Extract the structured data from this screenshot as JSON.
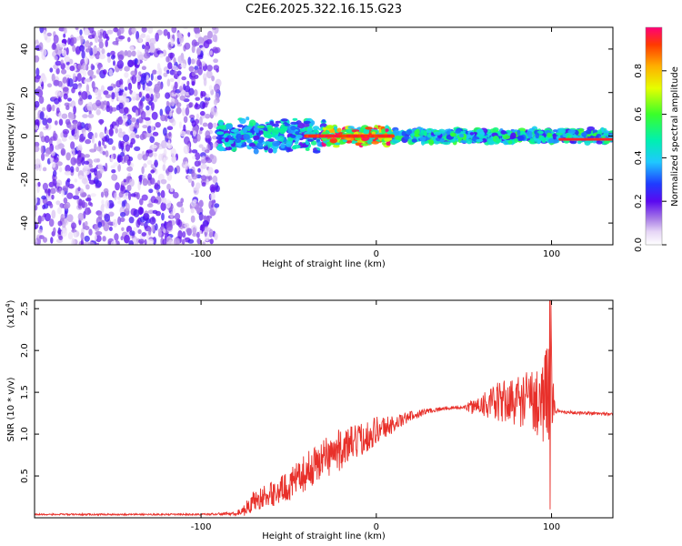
{
  "title": "C2E6.2025.322.16.15.G23",
  "chart_data": [
    {
      "type": "heatmap",
      "title": "C2E6.2025.322.16.15.G23",
      "xlabel": "Height of straight line (km)",
      "ylabel": "Frequency (Hz)",
      "xlim": [
        -195,
        135
      ],
      "ylim": [
        -50,
        50
      ],
      "x_ticks": [
        -100,
        0,
        100
      ],
      "y_ticks": [
        -40,
        -20,
        0,
        20,
        40
      ],
      "colorbar": {
        "label": "Normalized spectral amplitude",
        "range": [
          0,
          1
        ],
        "ticks": [
          "0.0",
          "0.2",
          "0.4",
          "0.6",
          "0.8"
        ]
      },
      "regions": [
        {
          "x_range": [
            -195,
            -90
          ],
          "freq_range": [
            -50,
            50
          ],
          "description": "broadband low amplitude noise",
          "amplitude": 0.15
        },
        {
          "x_range": [
            -90,
            -30
          ],
          "freq_center": 0,
          "freq_halfwidth": 7,
          "amplitude": 0.45
        },
        {
          "x_range": [
            -30,
            10
          ],
          "freq_center": 0,
          "freq_halfwidth": 4,
          "amplitude": 0.9
        },
        {
          "x_range": [
            10,
            135
          ],
          "freq_center": 0,
          "freq_halfwidth": 3,
          "amplitude": 0.5
        }
      ]
    },
    {
      "type": "line",
      "xlabel": "Height of straight line (km)",
      "ylabel": "SNR (10 * v/v)",
      "multiplier_label": "(x10",
      "multiplier_exp": "4",
      "xlim": [
        -195,
        135
      ],
      "ylim": [
        0,
        2.6
      ],
      "x_ticks": [
        -100,
        0,
        100
      ],
      "y_ticks": [
        0.5,
        1.0,
        1.5,
        2.0,
        2.5
      ],
      "color": "#e8302a",
      "series": [
        {
          "name": "SNR",
          "x": [
            -195,
            -150,
            -100,
            -80,
            -75,
            -70,
            -60,
            -50,
            -40,
            -30,
            -20,
            -10,
            0,
            10,
            20,
            30,
            40,
            50,
            57,
            60,
            65,
            70,
            80,
            90,
            95,
            98,
            100,
            102,
            105,
            110,
            120,
            135
          ],
          "y": [
            0.04,
            0.04,
            0.04,
            0.05,
            0.1,
            0.2,
            0.28,
            0.38,
            0.55,
            0.72,
            0.82,
            0.92,
            1.05,
            1.12,
            1.22,
            1.28,
            1.31,
            1.32,
            1.33,
            1.38,
            1.35,
            1.38,
            1.4,
            1.42,
            1.4,
            1.5,
            1.6,
            1.28,
            1.27,
            1.26,
            1.25,
            1.24
          ],
          "noise_amplitude": [
            0.01,
            0.01,
            0.01,
            0.02,
            0.08,
            0.12,
            0.15,
            0.18,
            0.22,
            0.25,
            0.25,
            0.2,
            0.18,
            0.1,
            0.06,
            0.03,
            0.02,
            0.02,
            0.12,
            0.15,
            0.2,
            0.25,
            0.3,
            0.4,
            0.5,
            0.6,
            0.8,
            0.04,
            0.02,
            0.02,
            0.02,
            0.02
          ]
        }
      ]
    }
  ]
}
